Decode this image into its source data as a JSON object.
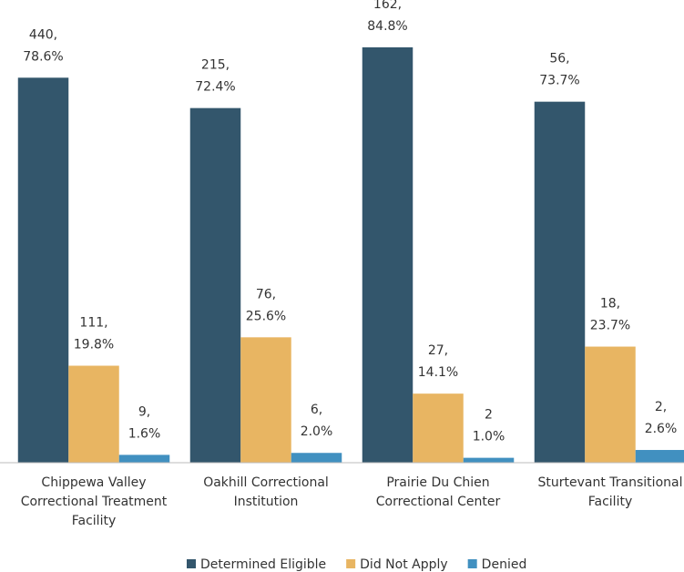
{
  "chart_data": {
    "type": "bar",
    "categories": [
      "Chippewa Valley Correctional Treatment Facility",
      "Oakhill Correctional Institution",
      "Prairie Du Chien Correctional Center",
      "Sturtevant Transitional Facility"
    ],
    "series": [
      {
        "name": "Determined Eligible",
        "color": "#33566c",
        "values": [
          78.6,
          72.4,
          84.8,
          73.7
        ],
        "value_labels": [
          [
            "440,",
            "78.6%"
          ],
          [
            "215,",
            "72.4%"
          ],
          [
            "162,",
            "84.8%"
          ],
          [
            "56,",
            "73.7%"
          ]
        ]
      },
      {
        "name": "Did Not Apply",
        "color": "#e8b562",
        "values": [
          19.8,
          25.6,
          14.1,
          23.7
        ],
        "value_labels": [
          [
            "111,",
            "19.8%"
          ],
          [
            "76,",
            "25.6%"
          ],
          [
            "27,",
            "14.1%"
          ],
          [
            "18,",
            "23.7%"
          ]
        ]
      },
      {
        "name": "Denied",
        "color": "#4190c0",
        "values": [
          1.6,
          2.0,
          1.0,
          2.6
        ],
        "value_labels": [
          [
            "9,",
            "1.6%"
          ],
          [
            "6,",
            "2.0%"
          ],
          [
            "2",
            "1.0%"
          ],
          [
            "2,",
            "2.6%"
          ]
        ]
      }
    ],
    "ylim": [
      0,
      90
    ]
  }
}
